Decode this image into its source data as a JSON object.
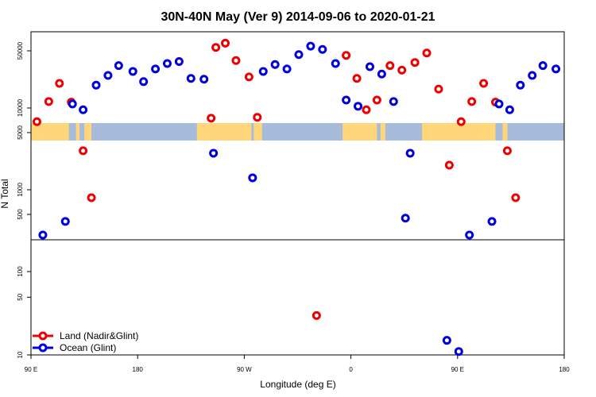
{
  "chart_data": {
    "type": "scatter",
    "title": "30N-40N May (Ver 9)   2014-09-06 to 2020-01-21",
    "xlabel": "Longitude (deg E)",
    "ylabel": "N Total",
    "y_scale": "log",
    "xlim": [
      90,
      540
    ],
    "ylim": [
      10,
      100000
    ],
    "x_ticks": [
      {
        "value": 90,
        "label": "90 E"
      },
      {
        "value": 180,
        "label": "180"
      },
      {
        "value": 270,
        "label": "90 W"
      },
      {
        "value": 360,
        "label": "0"
      },
      {
        "value": 450,
        "label": "90 E"
      },
      {
        "value": 540,
        "label": "180"
      }
    ],
    "y_ticks": [
      {
        "value": 10,
        "label": "10"
      },
      {
        "value": 50,
        "label": "50"
      },
      {
        "value": 100,
        "label": "100"
      },
      {
        "value": 500,
        "label": "500"
      },
      {
        "value": 1000,
        "label": "1000"
      },
      {
        "value": 5000,
        "label": "5000"
      },
      {
        "value": 10000,
        "label": "10000"
      },
      {
        "value": 50000,
        "label": "50000"
      }
    ],
    "legend": {
      "position": "bottom-left",
      "entries": [
        {
          "label": "Land (Nadir&Glint)",
          "color": "#ee0000"
        },
        {
          "label": "Ocean (Glint)",
          "color": "#0000dd"
        }
      ]
    },
    "series": [
      {
        "name": "Land (Nadir&Glint)",
        "color": "#ee0000",
        "points": [
          {
            "x": 95,
            "y": 6800
          },
          {
            "x": 105,
            "y": 12000
          },
          {
            "x": 114,
            "y": 20000
          },
          {
            "x": 124,
            "y": 11800
          },
          {
            "x": 134,
            "y": 3000
          },
          {
            "x": 141,
            "y": 800
          },
          {
            "x": 242,
            "y": 7500
          },
          {
            "x": 246,
            "y": 55000
          },
          {
            "x": 254,
            "y": 62000
          },
          {
            "x": 263,
            "y": 38000
          },
          {
            "x": 274,
            "y": 24000
          },
          {
            "x": 281,
            "y": 7700
          },
          {
            "x": 331,
            "y": 30
          },
          {
            "x": 356,
            "y": 44000
          },
          {
            "x": 365,
            "y": 23000
          },
          {
            "x": 373,
            "y": 9500
          },
          {
            "x": 382,
            "y": 12500
          },
          {
            "x": 393,
            "y": 33000
          },
          {
            "x": 403,
            "y": 29000
          },
          {
            "x": 414,
            "y": 36000
          },
          {
            "x": 424,
            "y": 47000
          },
          {
            "x": 434,
            "y": 17000
          },
          {
            "x": 443,
            "y": 2000
          },
          {
            "x": 453,
            "y": 6800
          },
          {
            "x": 462,
            "y": 12000
          },
          {
            "x": 472,
            "y": 20000
          },
          {
            "x": 482,
            "y": 11800
          },
          {
            "x": 492,
            "y": 3000
          },
          {
            "x": 499,
            "y": 800
          }
        ]
      },
      {
        "name": "Ocean (Glint)",
        "color": "#0000dd",
        "points": [
          {
            "x": 100,
            "y": 280
          },
          {
            "x": 119,
            "y": 410
          },
          {
            "x": 125,
            "y": 11200
          },
          {
            "x": 134,
            "y": 9500
          },
          {
            "x": 145,
            "y": 19000
          },
          {
            "x": 155,
            "y": 25000
          },
          {
            "x": 164,
            "y": 33000
          },
          {
            "x": 176,
            "y": 28000
          },
          {
            "x": 185,
            "y": 21000
          },
          {
            "x": 195,
            "y": 30000
          },
          {
            "x": 205,
            "y": 35000
          },
          {
            "x": 215,
            "y": 37000
          },
          {
            "x": 225,
            "y": 23000
          },
          {
            "x": 236,
            "y": 22500
          },
          {
            "x": 244,
            "y": 2800
          },
          {
            "x": 277,
            "y": 1400
          },
          {
            "x": 286,
            "y": 28000
          },
          {
            "x": 296,
            "y": 34000
          },
          {
            "x": 306,
            "y": 30000
          },
          {
            "x": 316,
            "y": 45000
          },
          {
            "x": 326,
            "y": 57000
          },
          {
            "x": 336,
            "y": 52000
          },
          {
            "x": 347,
            "y": 35000
          },
          {
            "x": 356,
            "y": 12500
          },
          {
            "x": 366,
            "y": 10500
          },
          {
            "x": 376,
            "y": 32000
          },
          {
            "x": 386,
            "y": 26000
          },
          {
            "x": 396,
            "y": 12000
          },
          {
            "x": 406,
            "y": 450
          },
          {
            "x": 410,
            "y": 2800
          },
          {
            "x": 441,
            "y": 15
          },
          {
            "x": 451,
            "y": 11
          },
          {
            "x": 460,
            "y": 280
          },
          {
            "x": 479,
            "y": 410
          },
          {
            "x": 485,
            "y": 11200
          },
          {
            "x": 494,
            "y": 9500
          },
          {
            "x": 503,
            "y": 19000
          },
          {
            "x": 513,
            "y": 25000
          },
          {
            "x": 522,
            "y": 33000
          },
          {
            "x": 533,
            "y": 30000
          }
        ]
      }
    ]
  }
}
